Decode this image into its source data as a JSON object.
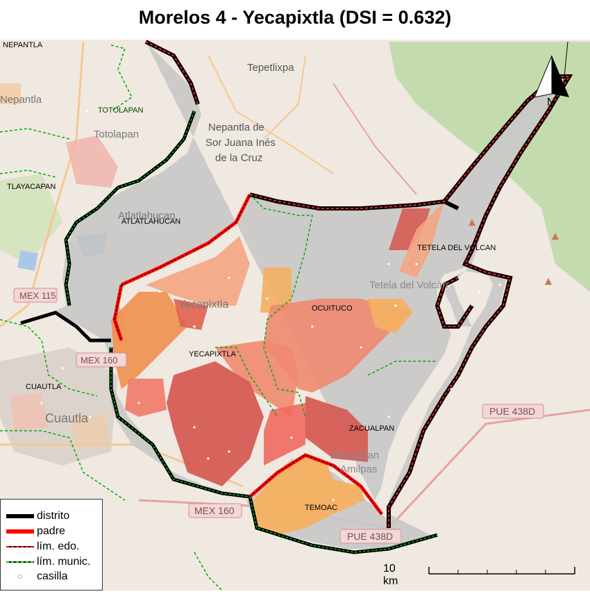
{
  "title": "Morelos 4 - Yecapixtla (DSI = 0.632)",
  "north_arrow": {
    "label": "N"
  },
  "legend": {
    "items": [
      {
        "label": "distrito",
        "color": "#000000",
        "style": "solid-thick"
      },
      {
        "label": "padre",
        "color": "#ff0000",
        "style": "solid-thick"
      },
      {
        "label": "lím. edo.",
        "color": "#ff0000",
        "style": "dashed"
      },
      {
        "label": "lím. munic.",
        "color": "#00cc00",
        "style": "dashed"
      },
      {
        "label": "casilla",
        "color": "#ffffff",
        "style": "point"
      }
    ]
  },
  "scale": {
    "label": "10 km"
  },
  "municipalities": [
    {
      "name": "NEPANTLA"
    },
    {
      "name": "TOTOLAPAN"
    },
    {
      "name": "TLAYACAPAN"
    },
    {
      "name": "ATLATLAHUCAN"
    },
    {
      "name": "YECAPIXTLA"
    },
    {
      "name": "OCUITUCO"
    },
    {
      "name": "TETELA DEL VOLCAN"
    },
    {
      "name": "CUAUTLA"
    },
    {
      "name": "ZACUALPAN"
    },
    {
      "name": "TEMOAC"
    }
  ],
  "basemap_labels": [
    {
      "text": "Tepetlixpa"
    },
    {
      "text": "Nepantla de"
    },
    {
      "text": "Sor Juana Inés"
    },
    {
      "text": "de la Cruz"
    },
    {
      "text": "Nepantla"
    },
    {
      "text": "Totolapan"
    },
    {
      "text": "Atlatlahucan"
    },
    {
      "text": "Yecapixtla"
    },
    {
      "text": "Tetela del Volcán"
    },
    {
      "text": "Cuautla"
    },
    {
      "text": "Zacualpan"
    },
    {
      "text": "Amilpas"
    }
  ],
  "road_shields": [
    {
      "text": "MEX 115"
    },
    {
      "text": "MEX 160"
    },
    {
      "text": "MEX 160"
    },
    {
      "text": "PUE 438D"
    },
    {
      "text": "PUE 438D"
    }
  ],
  "colors": {
    "district_fill": "#c8c8c8",
    "light_salmon": "#f4a582",
    "salmon": "#ef8a72",
    "red": "#d6604d",
    "orange": "#f4a060",
    "forest": "#b9d8a0"
  }
}
